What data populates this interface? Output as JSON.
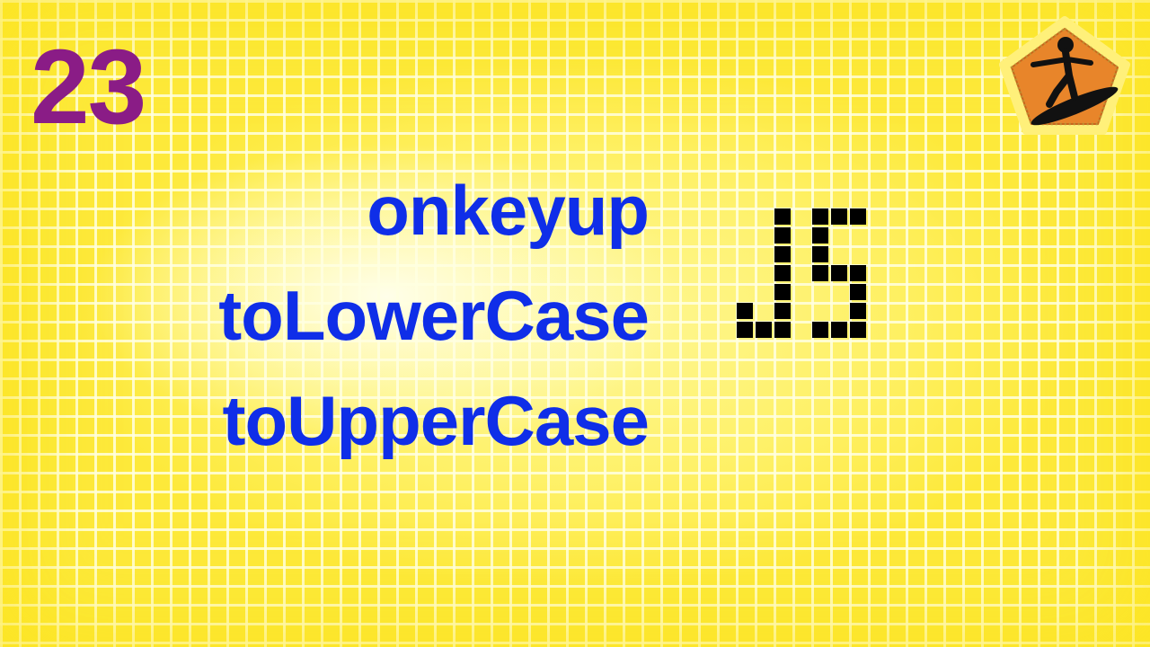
{
  "episode": {
    "number": "23"
  },
  "topics": [
    {
      "label": "onkeyup"
    },
    {
      "label": "toLowerCase"
    },
    {
      "label": "toUpperCase"
    }
  ],
  "logo": {
    "text": "JS",
    "icon": "pixel-js-logo-icon"
  },
  "brand": {
    "icon": "surfer-badge-icon"
  },
  "colors": {
    "background": "#fde93a",
    "episode_number": "#8a1c86",
    "topic_text": "#0f2ee8",
    "badge_fill": "#e8852a",
    "badge_border": "#fff07a"
  }
}
